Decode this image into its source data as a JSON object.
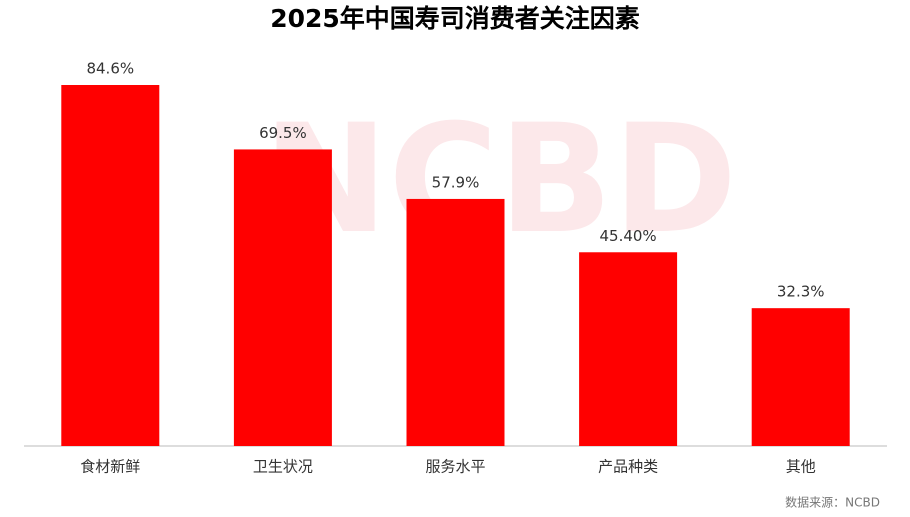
{
  "chart_data": {
    "type": "bar",
    "title": "2025年中国寿司消费者关注因素",
    "categories": [
      "食材新鲜",
      "卫生状况",
      "服务水平",
      "产品种类",
      "其他"
    ],
    "values": [
      84.6,
      69.5,
      57.9,
      45.4,
      32.3
    ],
    "value_labels": [
      "84.6%",
      "69.5%",
      "57.9%",
      "45.40%",
      "32.3%"
    ],
    "color": "#ff0000",
    "watermark": "NCBD",
    "source": "数据来源：NCBD"
  }
}
